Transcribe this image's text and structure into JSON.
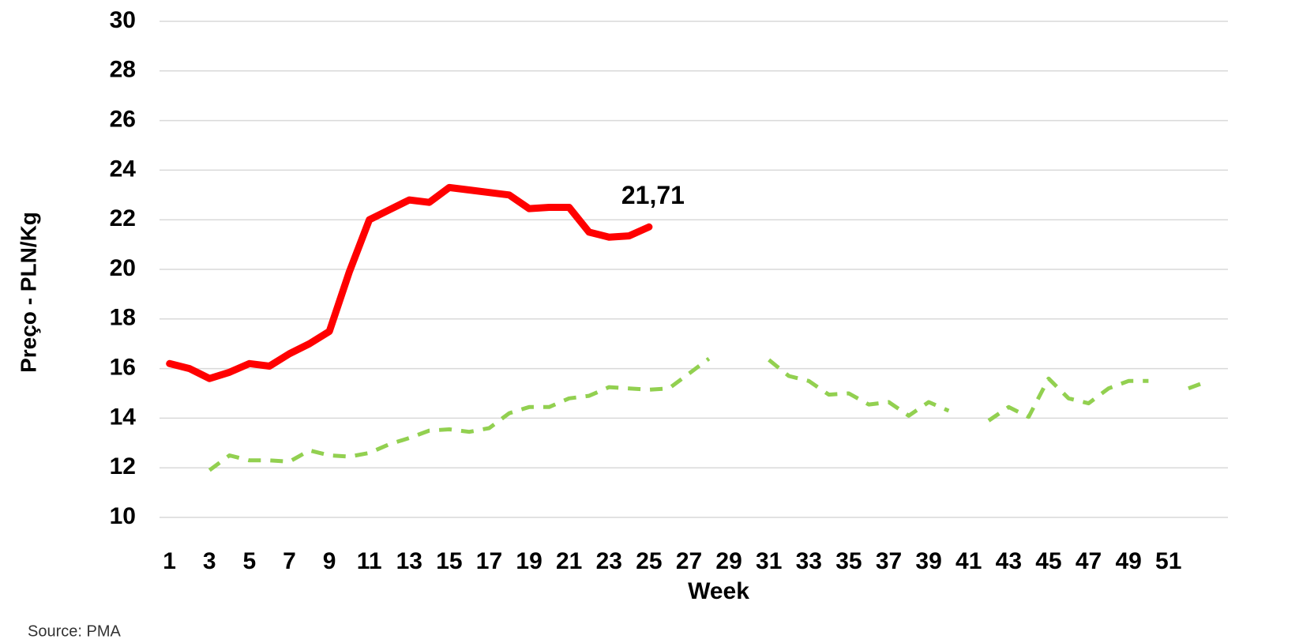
{
  "chart_data": {
    "type": "line",
    "x": [
      1,
      2,
      3,
      4,
      5,
      6,
      7,
      8,
      9,
      10,
      11,
      12,
      13,
      14,
      15,
      16,
      17,
      18,
      19,
      20,
      21,
      22,
      23,
      24,
      25,
      26,
      27,
      28,
      29,
      30,
      31,
      32,
      33,
      34,
      35,
      36,
      37,
      38,
      39,
      40,
      41,
      42,
      43,
      44,
      45,
      46,
      47,
      48,
      49,
      50,
      51,
      52,
      53
    ],
    "series": [
      {
        "color": "#ff0000",
        "dash": false,
        "values": [
          16.2,
          16.0,
          15.6,
          15.85,
          16.2,
          16.1,
          16.6,
          17.0,
          17.5,
          19.9,
          22.0,
          22.4,
          22.8,
          22.7,
          23.3,
          23.2,
          23.1,
          23.0,
          22.45,
          22.5,
          22.5,
          21.5,
          21.3,
          21.35,
          21.71,
          null,
          null,
          null,
          null,
          null,
          null,
          null,
          null,
          null,
          null,
          null,
          null,
          null,
          null,
          null,
          null,
          null,
          null,
          null,
          null,
          null,
          null,
          null,
          null,
          null,
          null,
          null,
          null
        ]
      },
      {
        "color": "#92d050",
        "dash": true,
        "values": [
          null,
          null,
          11.9,
          12.5,
          12.3,
          12.3,
          12.25,
          12.7,
          12.5,
          12.45,
          12.6,
          12.95,
          13.2,
          13.5,
          13.55,
          13.45,
          13.6,
          14.2,
          14.45,
          14.45,
          14.8,
          14.9,
          15.25,
          15.2,
          15.15,
          15.2,
          15.8,
          16.4,
          null,
          null,
          16.35,
          15.7,
          15.5,
          14.95,
          15.0,
          14.55,
          14.65,
          14.1,
          14.65,
          14.3,
          null,
          13.9,
          14.45,
          14.05,
          15.6,
          14.8,
          14.6,
          15.2,
          15.5,
          15.5,
          null,
          15.2,
          15.5
        ]
      }
    ],
    "annotation": "21,71",
    "xlim": [
      0.5,
      53.5
    ],
    "xticks": [
      1,
      3,
      5,
      7,
      9,
      11,
      13,
      15,
      17,
      19,
      21,
      23,
      25,
      27,
      29,
      31,
      33,
      35,
      37,
      39,
      41,
      43,
      45,
      47,
      49,
      51
    ],
    "ylim": [
      10,
      30
    ],
    "yticks": [
      10,
      12,
      14,
      16,
      18,
      20,
      22,
      24,
      26,
      28,
      30
    ],
    "grid": true,
    "xlabel": "Week",
    "ylabel": "Preço - PLN/Kg",
    "source": "Source: PMA"
  }
}
